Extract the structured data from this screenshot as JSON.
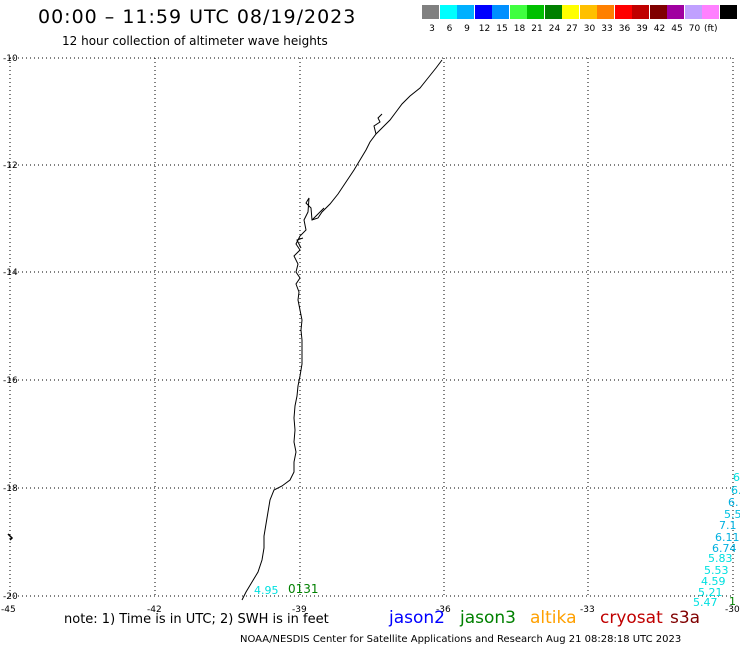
{
  "header": {
    "title": "00:00 – 11:59 UTC 08/19/2023",
    "subtitle": "12 hour collection of altimeter wave heights"
  },
  "scale": {
    "colors": [
      "#808080",
      "#00ffff",
      "#00b0ff",
      "#0000ff",
      "#0090ff",
      "#40ff40",
      "#00c000",
      "#008000",
      "#ffff00",
      "#ffc000",
      "#ff8000",
      "#ff0000",
      "#c00000",
      "#800000",
      "#a000a0",
      "#c0a0ff",
      "#ff80ff",
      "#000000"
    ],
    "labels": [
      "3",
      "6",
      "9",
      "12",
      "15",
      "18",
      "21",
      "24",
      "27",
      "30",
      "33",
      "36",
      "39",
      "42",
      "45",
      "70"
    ],
    "unit": "(ft)"
  },
  "map": {
    "lat_labels": [
      "-10",
      "-12",
      "-14",
      "-16",
      "-18",
      "-20"
    ],
    "lon_labels": [
      "-45",
      "-42",
      "-39",
      "-36",
      "-33",
      "-30"
    ]
  },
  "observations": {
    "left_track": [
      {
        "text": "4.95",
        "color": "#00e0e0"
      },
      {
        "text": "0131",
        "color": "#008000"
      }
    ],
    "right_track": [
      {
        "text": "6.",
        "color": "#00e0e0"
      },
      {
        "text": "6.",
        "color": "#00c0e0"
      },
      {
        "text": "6.",
        "color": "#00b0e0"
      },
      {
        "text": "5.5",
        "color": "#00c0e0"
      },
      {
        "text": "7.1",
        "color": "#00b0e0"
      },
      {
        "text": "6.11",
        "color": "#00b0e0"
      },
      {
        "text": "6.74",
        "color": "#00b0e0"
      },
      {
        "text": "5.83",
        "color": "#00e0e0"
      },
      {
        "text": "5.53",
        "color": "#00e0e0"
      },
      {
        "text": "4.59",
        "color": "#00e0e0"
      },
      {
        "text": "5.21",
        "color": "#00e0e0"
      },
      {
        "text": "5.47",
        "color": "#00e0e0"
      },
      {
        "text": "1",
        "color": "#008000"
      }
    ]
  },
  "footer": {
    "note": "note: 1) Time is in UTC; 2) SWH is in feet",
    "satellites": [
      {
        "name": "jason2",
        "color": "#0000ff"
      },
      {
        "name": "jason3",
        "color": "#008000"
      },
      {
        "name": "altika",
        "color": "#ffa000"
      },
      {
        "name": "cryosat",
        "color": "#c00000"
      },
      {
        "name": "s3a",
        "color": "#800000"
      }
    ],
    "credit": "NOAA/NESDIS Center for Satellite Applications and Research    Aug 21 08:28:18 UTC 2023"
  }
}
